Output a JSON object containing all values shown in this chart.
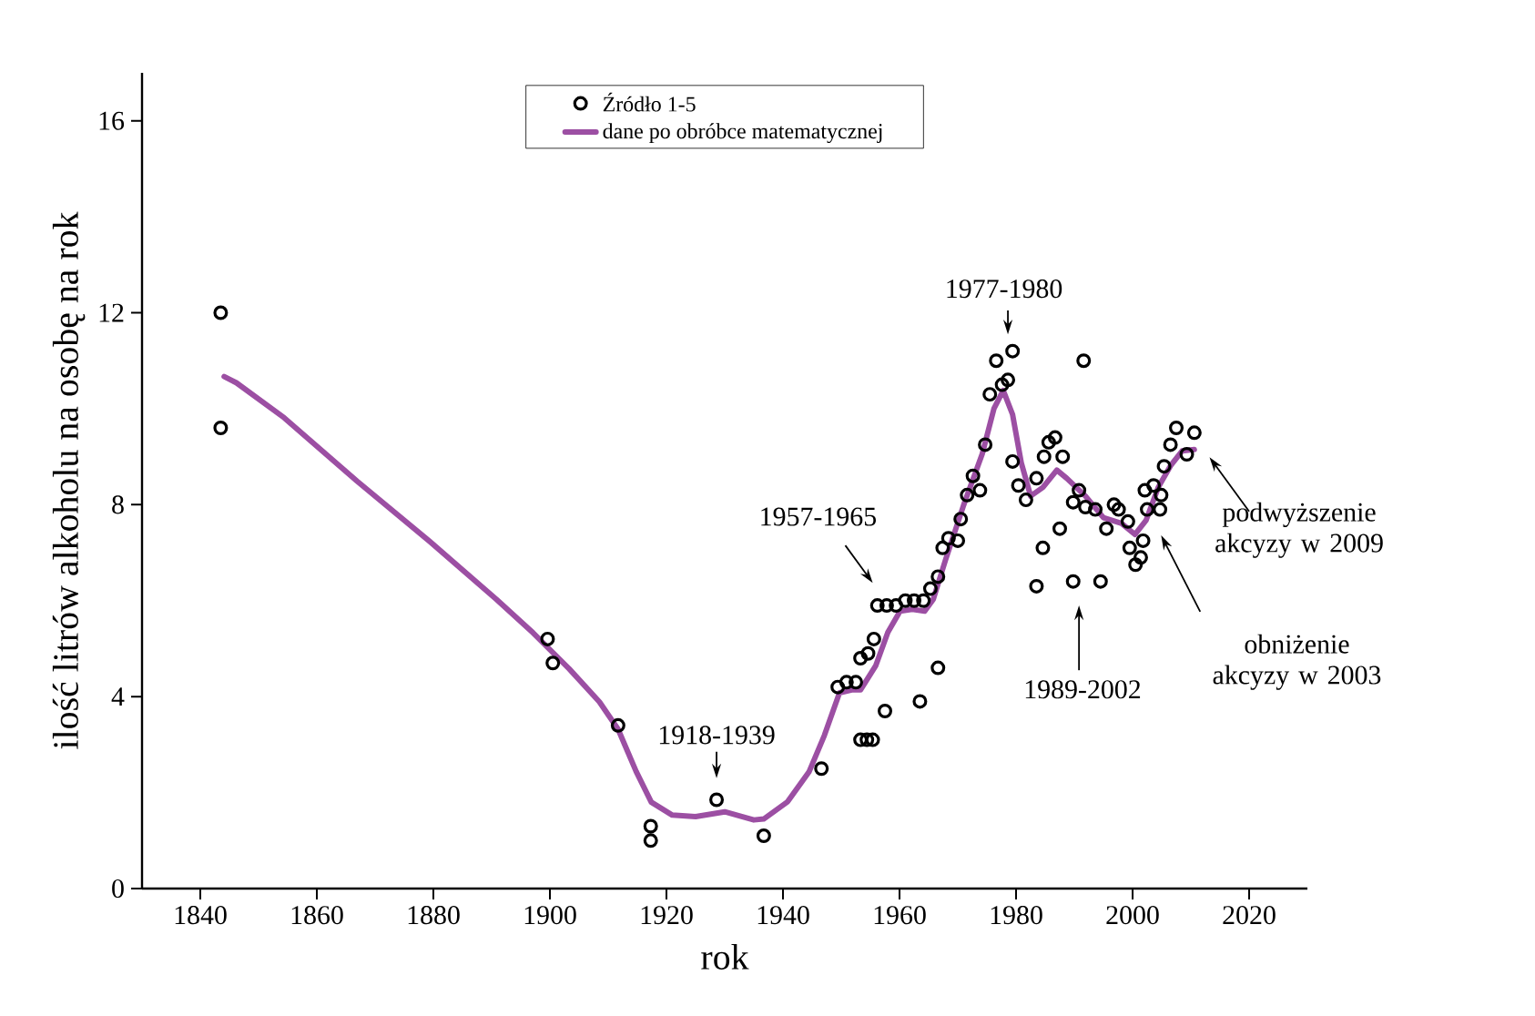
{
  "chart_data": {
    "type": "scatter",
    "xlabel": "rok",
    "ylabel": "ilość litrów alkoholu na osobę na rok",
    "xlim": [
      1830,
      2030
    ],
    "ylim": [
      0,
      17
    ],
    "xticks": [
      1840,
      1860,
      1880,
      1900,
      1920,
      1940,
      1960,
      1980,
      2000,
      2020
    ],
    "yticks": [
      0,
      4,
      8,
      12,
      16
    ],
    "legend": "top",
    "series": [
      {
        "name": "Źródło 1-5",
        "marker": "circle",
        "color": "#000000",
        "x": [
          1843.5,
          1843.5,
          1899.6,
          1900.5,
          1911.7,
          1917.3,
          1917.3,
          1928.6,
          1936.7,
          1946.6,
          1949.4,
          1950.9,
          1952.5,
          1953.3,
          1954.4,
          1955.4,
          1953.3,
          1954.6,
          1955.6,
          1957.5,
          1956.2,
          1957.8,
          1959.4,
          1961.0,
          1962.5,
          1964.1,
          1963.5,
          1965.3,
          1966.6,
          1966.6,
          1967.4,
          1968.4,
          1970.0,
          1970.5,
          1971.6,
          1972.6,
          1973.8,
          1974.7,
          1975.5,
          1976.6,
          1977.6,
          1978.6,
          1979.4,
          1979.4,
          1980.4,
          1981.7,
          1983.5,
          1983.5,
          1984.6,
          1984.8,
          1985.6,
          1986.7,
          1988.0,
          1987.5,
          1989.8,
          1989.8,
          1990.8,
          1991.6,
          1991.9,
          1993.6,
          1994.5,
          1995.5,
          1996.8,
          1997.6,
          1999.2,
          1999.5,
          2000.5,
          2001.4,
          2001.8,
          2002.5,
          2002.1,
          2003.6,
          2004.7,
          2004.9,
          2005.4,
          2006.5,
          2007.5,
          2009.3,
          2010.6
        ],
        "values": [
          12.0,
          9.6,
          5.2,
          4.7,
          3.4,
          1.3,
          1.0,
          1.85,
          1.1,
          2.5,
          4.2,
          4.3,
          4.3,
          3.1,
          3.1,
          3.1,
          4.8,
          4.9,
          5.2,
          3.7,
          5.9,
          5.9,
          5.9,
          6.0,
          6.0,
          6.0,
          3.9,
          6.25,
          4.6,
          6.5,
          7.1,
          7.3,
          7.25,
          7.7,
          8.2,
          8.6,
          8.3,
          9.25,
          10.3,
          11.0,
          10.5,
          10.6,
          11.2,
          8.9,
          8.4,
          8.1,
          8.55,
          6.3,
          7.1,
          9.0,
          9.3,
          9.4,
          9.0,
          7.5,
          6.4,
          8.05,
          8.3,
          11.0,
          7.95,
          7.9,
          6.4,
          7.5,
          8.0,
          7.9,
          7.65,
          7.1,
          6.75,
          6.9,
          7.25,
          7.9,
          8.3,
          8.4,
          7.9,
          8.2,
          8.8,
          9.25,
          9.6,
          9.05,
          9.5
        ]
      },
      {
        "name": "dane po obróbce matematycznej",
        "type": "line",
        "color": "#9c4fa3",
        "x": [
          1844.1,
          1846.2,
          1854.4,
          1866.9,
          1879.4,
          1890.8,
          1897.1,
          1903.3,
          1908.5,
          1911.7,
          1914.8,
          1917.4,
          1921.0,
          1925.0,
          1930.0,
          1935.0,
          1936.7,
          1940.8,
          1944.5,
          1947.1,
          1949.7,
          1951.8,
          1953.3,
          1955.9,
          1958.0,
          1960.1,
          1962.2,
          1964.3,
          1965.8,
          1967.9,
          1971.0,
          1974.2,
          1976.2,
          1977.8,
          1979.4,
          1980.9,
          1982.5,
          1984.6,
          1987.0,
          1988.7,
          1991.9,
          1995.0,
          1998.1,
          2000.4,
          2002.3,
          2004.4,
          2006.5,
          2008.5,
          2010.6
        ],
        "values": [
          10.67,
          10.54,
          9.81,
          8.49,
          7.23,
          6.03,
          5.33,
          4.58,
          3.89,
          3.32,
          2.44,
          1.8,
          1.53,
          1.5,
          1.6,
          1.43,
          1.45,
          1.81,
          2.44,
          3.19,
          4.08,
          4.14,
          4.14,
          4.64,
          5.34,
          5.78,
          5.82,
          5.78,
          6.03,
          6.85,
          7.99,
          9.06,
          10.0,
          10.38,
          9.88,
          8.87,
          8.18,
          8.36,
          8.72,
          8.55,
          8.18,
          7.73,
          7.61,
          7.38,
          7.67,
          8.36,
          8.81,
          9.12,
          9.15
        ]
      }
    ],
    "annotations": [
      "1918-1939",
      "1957-1965",
      "1977-1980",
      "1989-2002",
      "obniżenie akcyzy w 2003",
      "podwyższenie akcyzy w 2009"
    ]
  }
}
